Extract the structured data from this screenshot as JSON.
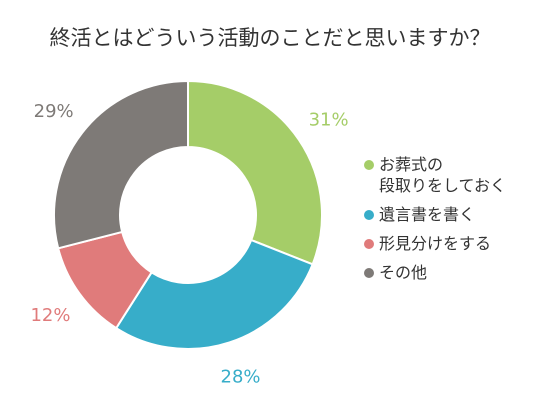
{
  "chart_data": {
    "type": "pie",
    "title": "終活とはどういう活動のことだと思いますか？",
    "categories": [
      "お葬式の\n段取りをしておく",
      "遺言書を書く",
      "形見分けをする",
      "その他"
    ],
    "values": [
      31,
      28,
      12,
      29
    ],
    "value_labels": [
      "31%",
      "28%",
      "12%",
      "29%"
    ],
    "colors": [
      "#a5cd68",
      "#37adc9",
      "#e07b7b",
      "#7e7a77"
    ],
    "legend_position": "right",
    "donut": true
  }
}
